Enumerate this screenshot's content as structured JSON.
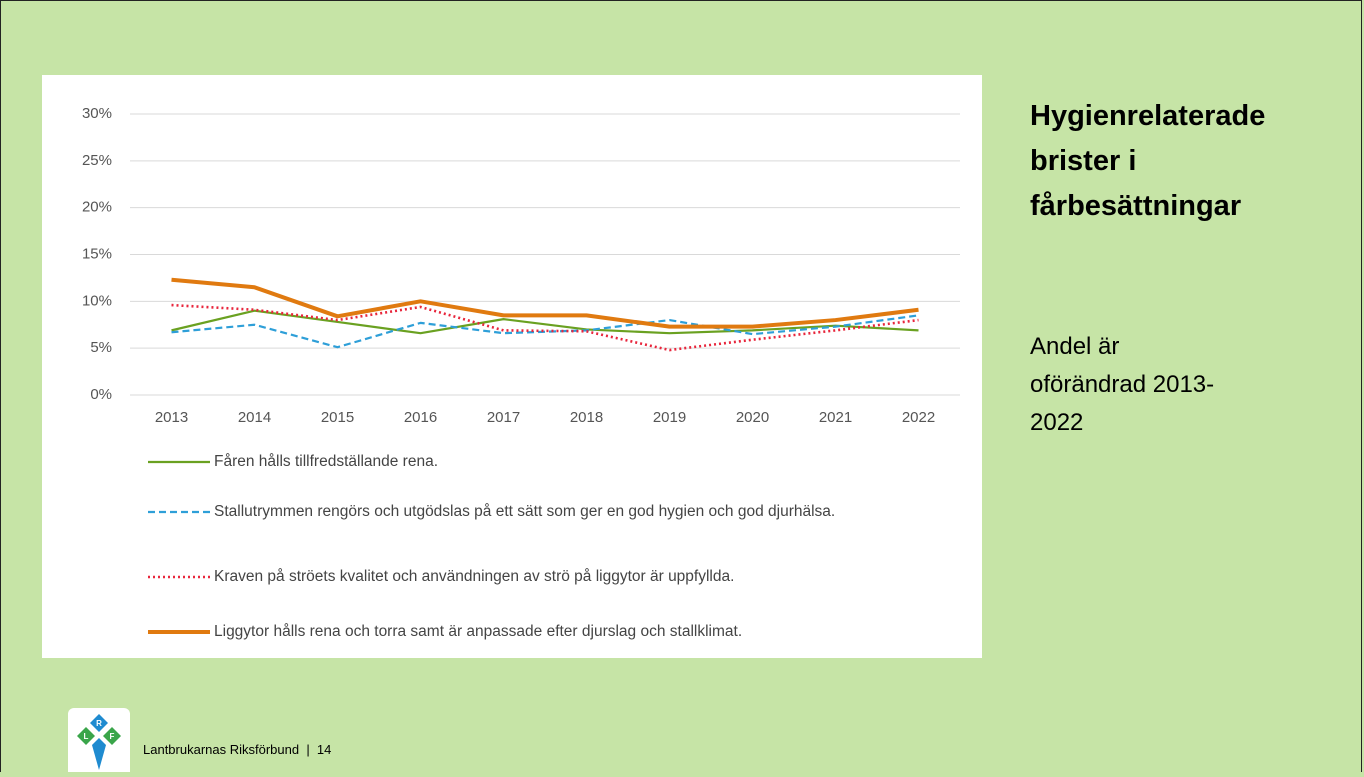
{
  "chart_data": {
    "type": "line",
    "categories": [
      "2013",
      "2014",
      "2015",
      "2016",
      "2017",
      "2018",
      "2019",
      "2020",
      "2021",
      "2022"
    ],
    "series": [
      {
        "name": "Fåren hålls tillfredställande rena.",
        "color": "#6aa121",
        "style": "solid",
        "values": [
          6.9,
          9.0,
          7.8,
          6.6,
          8.1,
          7.0,
          6.6,
          6.9,
          7.4,
          6.9
        ]
      },
      {
        "name": "Stallutrymmen rengörs och utgödslas på ett sätt som ger en god hygien och god djurhälsa.",
        "color": "#2e9fd8",
        "style": "dashed",
        "values": [
          6.7,
          7.5,
          5.1,
          7.7,
          6.6,
          6.9,
          8.0,
          6.5,
          7.3,
          8.5
        ]
      },
      {
        "name": "Kraven på ströets kvalitet och användningen av strö på liggytor är uppfyllda.",
        "color": "#e8263c",
        "style": "dotted",
        "values": [
          9.6,
          9.1,
          8.0,
          9.4,
          6.9,
          6.8,
          4.8,
          5.9,
          6.9,
          8.0
        ]
      },
      {
        "name": "Liggytor hålls rena och torra samt är anpassade efter djurslag och stallklimat.",
        "color": "#e07a10",
        "style": "thick",
        "values": [
          12.3,
          11.5,
          8.4,
          10.0,
          8.5,
          8.5,
          7.3,
          7.3,
          8.0,
          9.1
        ]
      }
    ],
    "ylim": [
      0,
      30
    ],
    "yticks": [
      {
        "value": 0,
        "label": "0%"
      },
      {
        "value": 5,
        "label": "5%"
      },
      {
        "value": 10,
        "label": "10%"
      },
      {
        "value": 15,
        "label": "15%"
      },
      {
        "value": 20,
        "label": "20%"
      },
      {
        "value": 25,
        "label": "25%"
      },
      {
        "value": 30,
        "label": "30%"
      }
    ],
    "grid": true,
    "legend": "bottom"
  },
  "slide": {
    "title": "Hygienrelaterade brister i fårbesättningar",
    "subtitle": "Andel är oförändrad 2013-2022",
    "footer": "Lantbrukarnas Riksförbund  |  14",
    "logo": [
      "R",
      "L",
      "F"
    ]
  }
}
